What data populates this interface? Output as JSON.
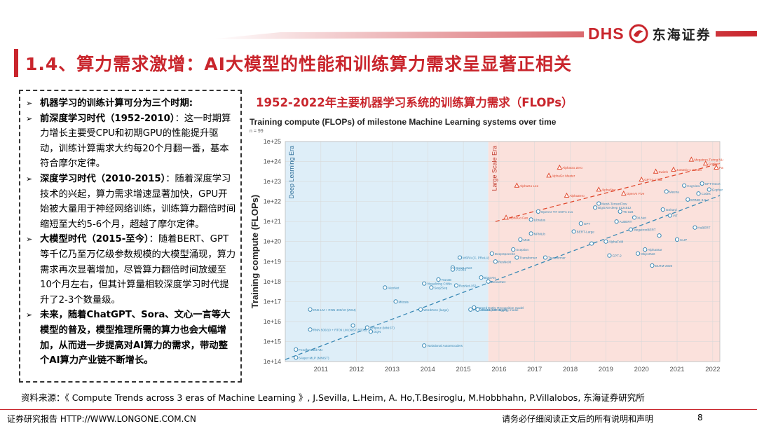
{
  "brand": {
    "logo_latin": "DHS",
    "logo_cn": "东海证券",
    "accent_color": "#c9252c"
  },
  "slide": {
    "title": "1.4、算力需求激增：AI大模型的性能和训练算力需求呈显著正相关",
    "chart_heading": "1952-2022年主要机器学习系统的训练算力需求（FLOPs）"
  },
  "textbox": {
    "bullets": [
      {
        "pre": "机器学习的训练计算可分为三个时期:",
        "bold": "",
        "post": ""
      },
      {
        "pre": "",
        "bold": "前深度学习时代（1952-2010）",
        "post": "：这一时期算力增长主要受CPU和初期GPU的性能提升驱动，训练计算需求大约每20个月翻一番，基本符合摩尔定律。"
      },
      {
        "pre": "",
        "bold": "深度学习时代（2010-2015）",
        "post": "：随着深度学习技术的兴起，算力需求增速显著加快，GPU开始被大量用于神经网络训练，训练算力翻倍时间缩短至大约5-6个月，超越了摩尔定律。"
      },
      {
        "pre": "",
        "bold": "大模型时代（2015-至今）",
        "post": "：随着BERT、GPT等千亿乃至万亿级参数规模的大模型涌现，算力需求再次显著增加，尽管算力翻倍时间放缓至10个月左右，但其计算量相较深度学习时代提升了2-3个数量级。"
      },
      {
        "pre": "",
        "bold": "未来，随着ChatGPT、Sora、文心一言等大模型的普及，模型推理所需的算力也会大幅增加，从而进一步提高对AI算力的需求，带动整个AI算力产业链不断增长。",
        "post": ""
      }
    ]
  },
  "chart_data": {
    "type": "scatter",
    "title": "Training compute (FLOPs) of milestone Machine Learning systems over time",
    "subtitle": "n = 99",
    "ylabel": "Training compute (FLOPs)",
    "xlabel": "",
    "xlim": [
      2010.0,
      2022.2
    ],
    "ylim": [
      14,
      25
    ],
    "y_scale": "log10",
    "x_ticks": [
      "2011",
      "2012",
      "2013",
      "2014",
      "2015",
      "2016",
      "2017",
      "2018",
      "2019",
      "2020",
      "2021",
      "2022"
    ],
    "y_ticks": [
      "1e+14",
      "1e+15",
      "1e+16",
      "1e+17",
      "1e+18",
      "1e+19",
      "1e+20",
      "1e+21",
      "1e+22",
      "1e+23",
      "1e+24",
      "1e+25"
    ],
    "eras": [
      {
        "name": "Deep Learning Era",
        "x_range": [
          2010.0,
          2015.7
        ],
        "color": "#deeef8"
      },
      {
        "name": "Large Scale Era",
        "x_range": [
          2015.7,
          2022.2
        ],
        "color": "#fbe1dc"
      }
    ],
    "trends": [
      {
        "name": "deep-learning-trend",
        "color": "#3a89b5",
        "x": [
          2010.0,
          2022.2
        ],
        "y": [
          14.1,
          22.3
        ]
      },
      {
        "name": "large-scale-trend",
        "color": "#e0492e",
        "x": [
          2015.9,
          2022.2
        ],
        "y": [
          21.0,
          23.9
        ]
      }
    ],
    "series": [
      {
        "name": "regular",
        "marker": "circle",
        "color": "#3a89b5",
        "points": [
          {
            "x": 2010.3,
            "y": 14.2,
            "label": "6-layer MLP (MNIST)"
          },
          {
            "x": 2010.3,
            "y": 14.6,
            "label": "Feedforward NN"
          },
          {
            "x": 2010.7,
            "y": 15.6,
            "label": "RNN 500/10 + RT09 LM (NIST RT05)"
          },
          {
            "x": 2010.7,
            "y": 16.6,
            "label": "KN5 LM + RNN 400/10 (WSJ)"
          },
          {
            "x": 2011.9,
            "y": 15.8,
            "label": ""
          },
          {
            "x": 2012.3,
            "y": 15.7,
            "label": "Dropout (MNIST)"
          },
          {
            "x": 2012.4,
            "y": 15.5,
            "label": "DQN"
          },
          {
            "x": 2012.8,
            "y": 17.7,
            "label": "AlexNet"
          },
          {
            "x": 2013.1,
            "y": 17.0,
            "label": "Mitosis"
          },
          {
            "x": 2013.8,
            "y": 16.6,
            "label": "Word2Vec (large)"
          },
          {
            "x": 2013.9,
            "y": 17.9,
            "label": "Visualizing CNNs"
          },
          {
            "x": 2013.9,
            "y": 14.8,
            "label": "Variational Autoencoders"
          },
          {
            "x": 2014.1,
            "y": 17.7,
            "label": "Seq2Seq"
          },
          {
            "x": 2014.3,
            "y": 18.1,
            "label": "TransE"
          },
          {
            "x": 2014.7,
            "y": 18.7,
            "label": "GoogLeNet"
          },
          {
            "x": 2014.7,
            "y": 18.6,
            "label": "VGG16"
          },
          {
            "x": 2014.9,
            "y": 19.2,
            "label": "MSRA (C, PReLU)"
          },
          {
            "x": 2014.8,
            "y": 17.8,
            "label": "ResNet-152"
          },
          {
            "x": 2015.2,
            "y": 16.6,
            "label": "Part-of-sentence tagging model"
          },
          {
            "x": 2015.3,
            "y": 16.7,
            "label": "Named Entity Recognition model"
          },
          {
            "x": 2015.4,
            "y": 16.6,
            "label": "ADAM (CIFAR-10)"
          },
          {
            "x": 2015.5,
            "y": 18.2,
            "label": "BigGAN"
          },
          {
            "x": 2015.7,
            "y": 18.0,
            "label": "DenseNet"
          },
          {
            "x": 2015.8,
            "y": 19.4,
            "label": "DeepSpeech2"
          },
          {
            "x": 2015.9,
            "y": 19.0,
            "label": "ResNeXt"
          },
          {
            "x": 2016.4,
            "y": 19.6,
            "label": "Xception"
          },
          {
            "x": 2016.5,
            "y": 19.2,
            "label": "Transformer"
          },
          {
            "x": 2016.6,
            "y": 20.1,
            "label": "MoE"
          },
          {
            "x": 2016.9,
            "y": 20.4,
            "label": "NPMLib"
          },
          {
            "x": 2016.9,
            "y": 21.1,
            "label": "Libratus"
          },
          {
            "x": 2017.1,
            "y": 21.5,
            "label": "OpenAI TI7 DOTA 1v1"
          },
          {
            "x": 2017.3,
            "y": 19.2,
            "label": "Transformer"
          },
          {
            "x": 2018.1,
            "y": 20.5,
            "label": "BERT-Large"
          },
          {
            "x": 2018.3,
            "y": 20.9,
            "label": "GPT"
          },
          {
            "x": 2018.6,
            "y": 19.9,
            "label": ""
          },
          {
            "x": 2018.7,
            "y": 21.7,
            "label": "BigGAN-deep 512x512"
          },
          {
            "x": 2018.8,
            "y": 21.9,
            "label": "Mesh-TensorFlow"
          },
          {
            "x": 2019.0,
            "y": 20.0,
            "label": "AlphaFold"
          },
          {
            "x": 2019.1,
            "y": 19.3,
            "label": "GPT-2"
          },
          {
            "x": 2019.3,
            "y": 21.0,
            "label": "ALBERT"
          },
          {
            "x": 2019.4,
            "y": 21.5,
            "label": "T5-11B"
          },
          {
            "x": 2019.7,
            "y": 20.6,
            "label": "MegatronBERT"
          },
          {
            "x": 2019.8,
            "y": 21.2,
            "label": "XLNet"
          },
          {
            "x": 2019.9,
            "y": 19.4,
            "label": "ObjectNet"
          },
          {
            "x": 2020.1,
            "y": 19.6,
            "label": "AlphaStar"
          },
          {
            "x": 2020.3,
            "y": 18.8,
            "label": "DLRM-2020"
          },
          {
            "x": 2020.5,
            "y": 20.3,
            "label": ""
          },
          {
            "x": 2020.6,
            "y": 21.6,
            "label": "GShard"
          },
          {
            "x": 2020.7,
            "y": 22.5,
            "label": "Meena"
          },
          {
            "x": 2020.8,
            "y": 21.3,
            "label": "ViT"
          },
          {
            "x": 2021.0,
            "y": 20.1,
            "label": "CLIP"
          },
          {
            "x": 2021.2,
            "y": 22.8,
            "label": "CogView"
          },
          {
            "x": 2021.3,
            "y": 22.1,
            "label": "ERNIE 3.0"
          },
          {
            "x": 2021.5,
            "y": 20.7,
            "label": "HuBERT"
          },
          {
            "x": 2021.6,
            "y": 22.4,
            "label": "Codex"
          },
          {
            "x": 2021.7,
            "y": 22.9,
            "label": "GPT-NeoX"
          },
          {
            "x": 2021.9,
            "y": 22.6,
            "label": "Gopher"
          }
        ]
      },
      {
        "name": "large-scale",
        "marker": "triangle",
        "color": "#e0492e",
        "points": [
          {
            "x": 2016.2,
            "y": 21.2,
            "label": "AlphaGo Fan"
          },
          {
            "x": 2016.5,
            "y": 22.8,
            "label": "AlphaGo Lee"
          },
          {
            "x": 2017.4,
            "y": 23.3,
            "label": "AlphaGo Master"
          },
          {
            "x": 2017.7,
            "y": 23.7,
            "label": "AlphaGo Zero"
          },
          {
            "x": 2017.9,
            "y": 22.3,
            "label": "AlphaZero"
          },
          {
            "x": 2018.8,
            "y": 22.6,
            "label": "AlphaStar"
          },
          {
            "x": 2019.5,
            "y": 22.4,
            "label": "OpenAI Five"
          },
          {
            "x": 2020.0,
            "y": 23.1,
            "label": "GPT-3 175B"
          },
          {
            "x": 2020.4,
            "y": 23.5,
            "label": "Switch"
          },
          {
            "x": 2020.9,
            "y": 23.6,
            "label": "Jurassic-1 Jumbo"
          },
          {
            "x": 2021.4,
            "y": 24.1,
            "label": "Megatron-Turing NLG 530B"
          },
          {
            "x": 2021.8,
            "y": 23.9,
            "label": "Gopher"
          },
          {
            "x": 2022.1,
            "y": 23.7,
            "label": "PaLM"
          }
        ]
      }
    ],
    "colors": {
      "regular": "#3a89b5",
      "large_scale": "#e0492e",
      "grid": "#d9d9d9",
      "axis_text": "#555555"
    }
  },
  "source": "资料来源：《 Compute Trends across 3 eras of Machine Learning 》, J.Sevilla, L.Heim, A. Ho,T.Besiroglu, M.Hobbhahn, P.Villalobos, 东海证券研究所",
  "footer": {
    "left": "证券研究报告 HTTP://WWW.LONGONE.COM.CN",
    "right": "请务必仔细阅读正文后的所有说明和声明",
    "page": "8"
  }
}
